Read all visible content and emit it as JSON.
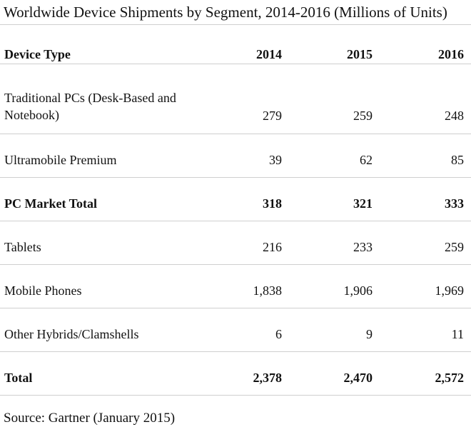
{
  "title": "Worldwide Device Shipments by Segment, 2014-2016 (Millions of Units)",
  "table": {
    "headers": [
      "Device Type",
      "2014",
      "2015",
      "2016"
    ],
    "rows": [
      {
        "label": "Traditional PCs (Desk-Based and Notebook)",
        "v2014": "279",
        "v2015": "259",
        "v2016": "248",
        "bold": false
      },
      {
        "label": "Ultramobile Premium",
        "v2014": "39",
        "v2015": "62",
        "v2016": "85",
        "bold": false
      },
      {
        "label": "PC Market Total",
        "v2014": "318",
        "v2015": "321",
        "v2016": "333",
        "bold": true
      },
      {
        "label": "Tablets",
        "v2014": "216",
        "v2015": "233",
        "v2016": "259",
        "bold": false
      },
      {
        "label": "Mobile Phones",
        "v2014": "1,838",
        "v2015": "1,906",
        "v2016": "1,969",
        "bold": false
      },
      {
        "label": "Other Hybrids/Clamshells",
        "v2014": "6",
        "v2015": "9",
        "v2016": "11",
        "bold": false
      },
      {
        "label": "Total",
        "v2014": "2,378",
        "v2015": "2,470",
        "v2016": "2,572",
        "bold": true
      }
    ]
  },
  "source": "Source: Gartner (January 2015)"
}
